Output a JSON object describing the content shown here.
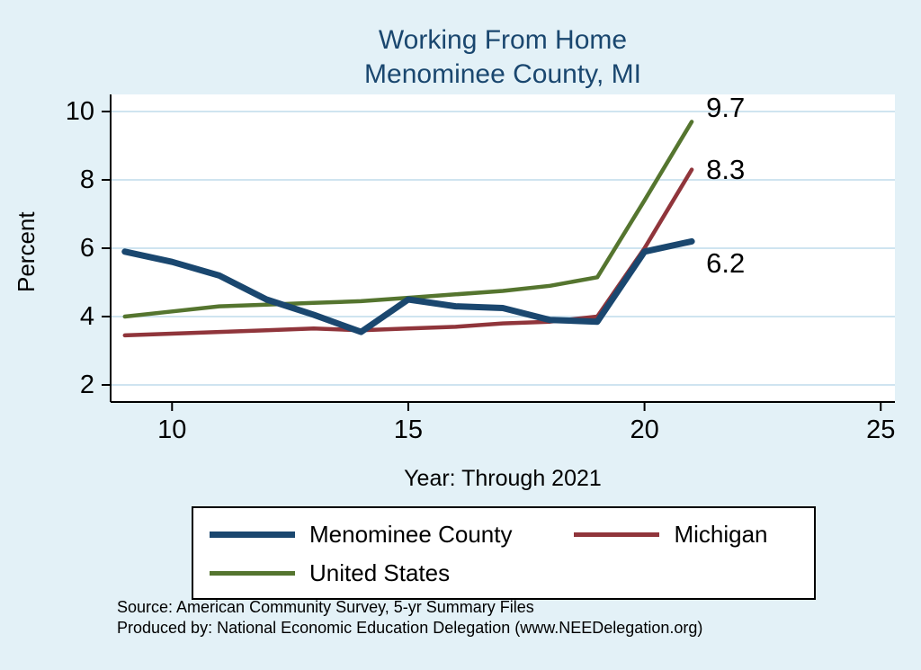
{
  "title": {
    "line1": "Working From Home",
    "line2": "Menominee County, MI"
  },
  "axes": {
    "y_label": "Percent",
    "x_label": "Year: Through 2021"
  },
  "chart_data": {
    "type": "line",
    "title": "Working From Home — Menominee County, MI",
    "xlabel": "Year: Through 2021",
    "ylabel": "Percent",
    "x": [
      9,
      10,
      11,
      12,
      13,
      14,
      15,
      16,
      17,
      18,
      19,
      20,
      21
    ],
    "series": [
      {
        "name": "Menominee County",
        "color": "#1a476f",
        "line_width": 7,
        "values": [
          5.9,
          5.6,
          5.2,
          4.5,
          4.05,
          3.55,
          4.5,
          4.3,
          4.25,
          3.9,
          3.85,
          5.9,
          6.2
        ],
        "end_label": "6.2",
        "end_label_dy": 24
      },
      {
        "name": "Michigan",
        "color": "#90353b",
        "line_width": 4.5,
        "values": [
          3.45,
          3.5,
          3.55,
          3.6,
          3.65,
          3.6,
          3.65,
          3.7,
          3.8,
          3.85,
          4.0,
          6.0,
          8.3
        ],
        "end_label": "8.3",
        "end_label_dy": 0
      },
      {
        "name": "United States",
        "color": "#55752f",
        "line_width": 4.5,
        "values": [
          4.0,
          4.15,
          4.3,
          4.35,
          4.4,
          4.45,
          4.55,
          4.65,
          4.75,
          4.9,
          5.15,
          7.4,
          9.7
        ],
        "end_label": "9.7",
        "end_label_dy": -16
      }
    ],
    "x_ticks": [
      10,
      15,
      20,
      25
    ],
    "y_ticks": [
      2,
      4,
      6,
      8,
      10
    ],
    "xlim": [
      8.7,
      25.3
    ],
    "ylim": [
      1.5,
      10.5
    ],
    "grid": true,
    "legend_position": "bottom"
  },
  "notes": {
    "source": "Source: American Community Survey, 5-yr Summary Files",
    "produced_by": "Produced by: National Economic Education Delegation (www.NEEDelegation.org)"
  },
  "colors": {
    "background": "#e3f1f7",
    "plot_background": "#ffffff",
    "grid": "#cfe4f0",
    "axis": "#000000",
    "title_text": "#1a476f"
  }
}
